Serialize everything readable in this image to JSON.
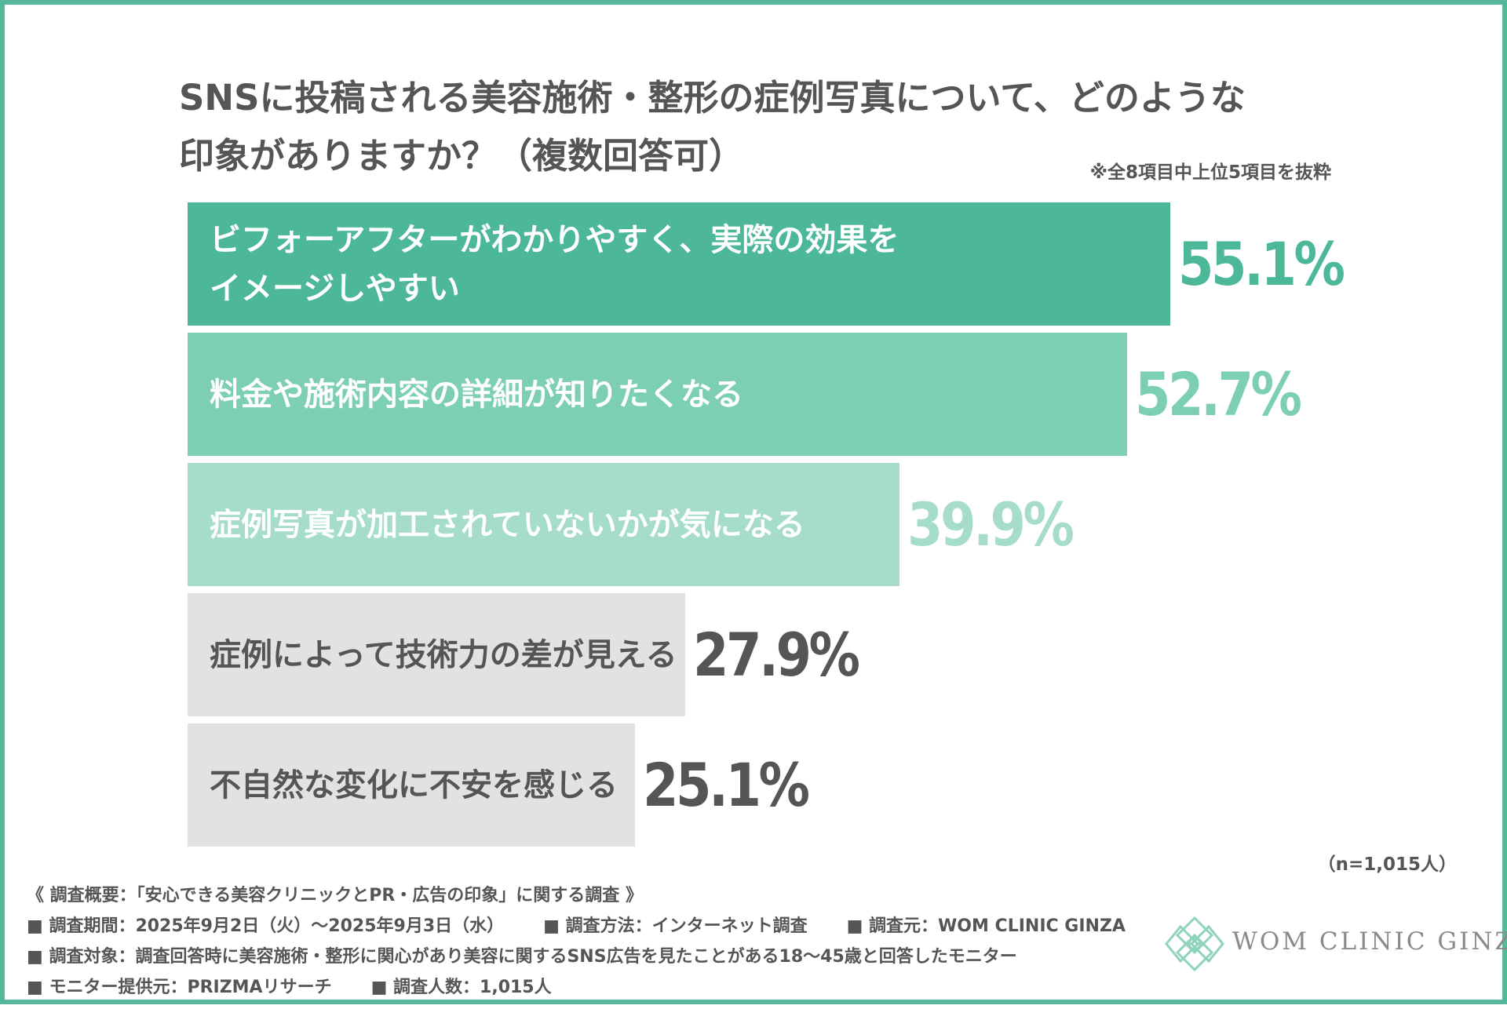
{
  "title_line1": "SNSに投稿される美容施術・整形の症例写真について、どのような",
  "title_line2": "印象がありますか？（複数回答可）",
  "note": "※全8項目中上位5項目を抜粋",
  "sample_size": "（n=1,015人）",
  "chart_data": {
    "type": "bar",
    "orientation": "horizontal",
    "categories": [
      "ビフォーアフターがわかりやすく、実際の効果を\nイメージしやすい",
      "料金や施術内容の詳細が知りたくなる",
      "症例写真が加工されていないかが気になる",
      "症例によって技術力の差が見える",
      "不自然な変化に不安を感じる"
    ],
    "values": [
      55.1,
      52.7,
      39.9,
      27.9,
      25.1
    ],
    "value_labels": [
      "55.1%",
      "52.7%",
      "39.9%",
      "27.9%",
      "25.1%"
    ],
    "unit": "%",
    "bar_colors": [
      "#4db79a",
      "#7dcfb4",
      "#a6ddc9",
      "#e2e2e2",
      "#e2e2e2"
    ],
    "label_colors": [
      "#ffffff",
      "#ffffff",
      "#ffffff",
      "#555555",
      "#555555"
    ],
    "value_colors": [
      "#4db79a",
      "#7dcfb4",
      "#a6ddc9",
      "#555555",
      "#555555"
    ]
  },
  "footer": {
    "summary": "《 調査概要：「安心できる美容クリニックとPR・広告の印象」に関する調査 》",
    "period": "■ 調査期間：2025年9月2日（火）〜2025年9月3日（水）",
    "method": "■ 調査方法：インターネット調査",
    "source": "■ 調査元：WOM CLINIC GINZA",
    "target": "■ 調査対象：調査回答時に美容施術・整形に関心があり美容に関するSNS広告を見たことがある18〜45歳と回答したモニター",
    "provider": "■ モニター提供元：PRIZMAリサーチ",
    "count": "■ 調査人数：1,015人"
  },
  "logo": {
    "text": "WOM CLINIC GINZA",
    "color": "#8fd3bd"
  }
}
